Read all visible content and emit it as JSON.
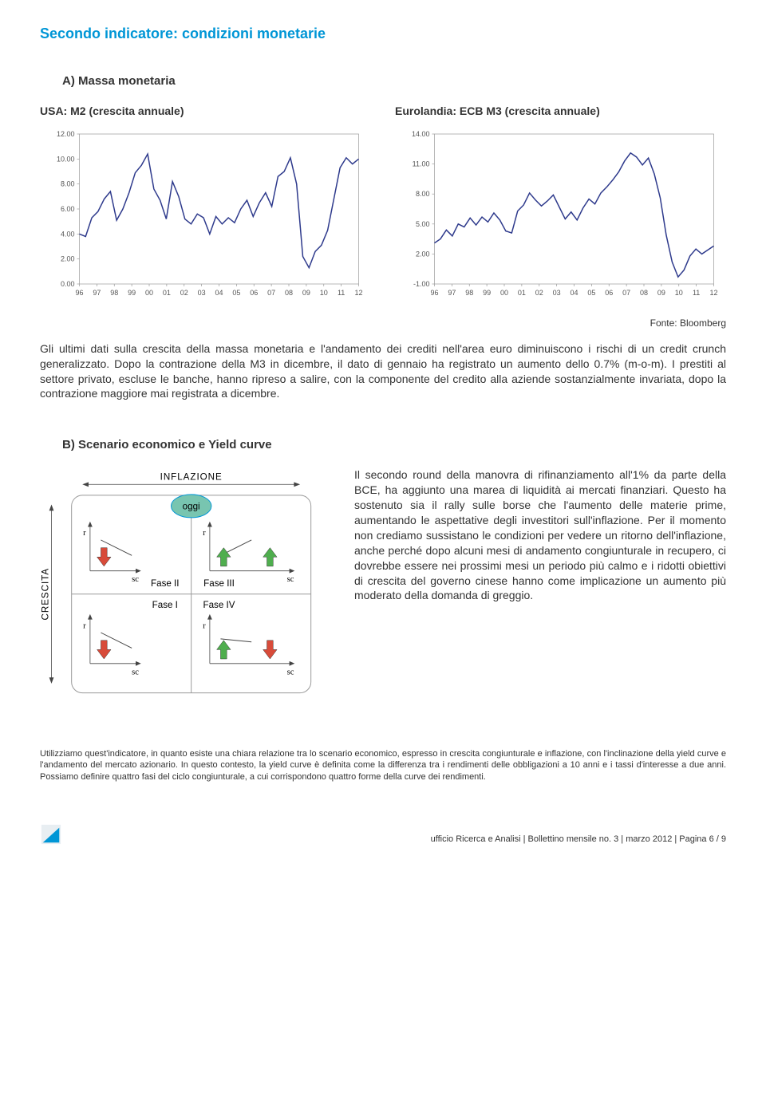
{
  "page_title": "Secondo indicatore: condizioni monetarie",
  "section_a_heading": "A) Massa monetaria",
  "chart1": {
    "title": "USA: M2 (crescita annuale)",
    "type": "line",
    "color": "#2e3a8c",
    "background_color": "#ffffff",
    "axis_color": "#999999",
    "grid_color": "#cccccc",
    "ylim": [
      0,
      12
    ],
    "ytick_step": 2,
    "yticks": [
      "0.00",
      "2.00",
      "4.00",
      "6.00",
      "8.00",
      "10.00",
      "12.00"
    ],
    "xlabels": [
      "96",
      "97",
      "98",
      "99",
      "00",
      "01",
      "02",
      "03",
      "04",
      "05",
      "06",
      "07",
      "08",
      "09",
      "10",
      "11",
      "12"
    ],
    "values": [
      4.0,
      3.8,
      5.3,
      5.8,
      6.8,
      7.4,
      5.1,
      6.0,
      7.3,
      8.9,
      9.5,
      10.4,
      7.6,
      6.7,
      5.2,
      8.2,
      7.0,
      5.2,
      4.8,
      5.6,
      5.3,
      4.0,
      5.4,
      4.8,
      5.3,
      4.9,
      6.0,
      6.7,
      5.4,
      6.5,
      7.3,
      6.2,
      8.6,
      9.0,
      10.1,
      8.0,
      2.2,
      1.3,
      2.6,
      3.1,
      4.3,
      6.8,
      9.3,
      10.1,
      9.6,
      10.0
    ]
  },
  "chart2": {
    "title": "Eurolandia: ECB M3 (crescita annuale)",
    "type": "line",
    "color": "#2e3a8c",
    "background_color": "#ffffff",
    "axis_color": "#999999",
    "grid_color": "#cccccc",
    "ylim": [
      -1,
      14
    ],
    "ytick_step": 3,
    "yticks": [
      "-1.00",
      "2.00",
      "5.00",
      "8.00",
      "11.00",
      "14.00"
    ],
    "xlabels": [
      "96",
      "97",
      "98",
      "99",
      "00",
      "01",
      "02",
      "03",
      "04",
      "05",
      "06",
      "07",
      "08",
      "09",
      "10",
      "11",
      "12"
    ],
    "values": [
      3.1,
      3.5,
      4.4,
      3.8,
      5.0,
      4.7,
      5.6,
      4.9,
      5.7,
      5.2,
      6.1,
      5.4,
      4.3,
      4.1,
      6.3,
      6.9,
      8.1,
      7.4,
      6.8,
      7.3,
      7.9,
      6.7,
      5.5,
      6.2,
      5.4,
      6.6,
      7.5,
      7.0,
      8.1,
      8.7,
      9.4,
      10.2,
      11.3,
      12.1,
      11.7,
      10.9,
      11.6,
      10.0,
      7.6,
      3.9,
      1.2,
      -0.3,
      0.4,
      1.8,
      2.5,
      2.0,
      2.4,
      2.8
    ]
  },
  "source_line": "Fonte: Bloomberg",
  "paragraph_a": "Gli ultimi dati sulla crescita della massa monetaria e l'andamento dei crediti nell'area euro diminuiscono i rischi di un credit crunch generalizzato. Dopo la contrazione della M3 in dicembre, il dato di gennaio ha registrato un aumento dello 0.7% (m-o-m). I prestiti al settore privato, escluse le banche, hanno ripreso a salire, con la componente del credito alla aziende sostanzialmente invariata, dopo la contrazione maggiore mai registrata a dicembre.",
  "section_b_heading": "B) Scenario economico e Yield curve",
  "diagram": {
    "axis_top_label": "INFLAZIONE",
    "axis_left_label": "CRESCITA",
    "oggi_label": "oggi",
    "oggi_color": "#78c5b0",
    "oggi_border": "#0096d6",
    "fase1": "Fase I",
    "fase2": "Fase II",
    "fase3": "Fase III",
    "fase4": "Fase IV",
    "r_label": "r",
    "sc_label": "sc",
    "arrow_up_color": "#4fae4e",
    "arrow_down_color": "#d84b3a",
    "border_color": "#999999"
  },
  "paragraph_b": "Il secondo round della manovra di rifinanziamento all'1% da parte della BCE, ha aggiunto una marea di liquidità ai mercati finanziari. Questo ha sostenuto sia il rally sulle borse che l'aumento delle materie prime, aumentando le aspettative degli investitori sull'inflazione. Per il momento non crediamo sussistano le condizioni per vedere un ritorno dell'inflazione, anche perché dopo alcuni mesi di andamento congiunturale in recupero, ci dovrebbe essere nei prossimi mesi un periodo più calmo e i ridotti obiettivi di crescita del governo cinese hanno come implicazione un aumento più moderato della domanda di greggio.",
  "small_note": "Utilizziamo quest'indicatore, in quanto esiste una chiara relazione tra lo scenario economico, espresso in crescita congiunturale e inflazione, con l'inclinazione della yield curve e l'andamento del mercato azionario. In questo contesto, la yield curve è definita come la differenza tra i rendimenti delle obbligazioni a 10 anni e i tassi d'interesse a due anni. Possiamo definire quattro fasi del ciclo congiunturale, a cui corrispondono quattro forme della curve dei rendimenti.",
  "footer_text": "ufficio Ricerca e Analisi | Bollettino mensile no. 3 | marzo 2012 | Pagina 6 / 9",
  "logo_color": "#0096d6"
}
